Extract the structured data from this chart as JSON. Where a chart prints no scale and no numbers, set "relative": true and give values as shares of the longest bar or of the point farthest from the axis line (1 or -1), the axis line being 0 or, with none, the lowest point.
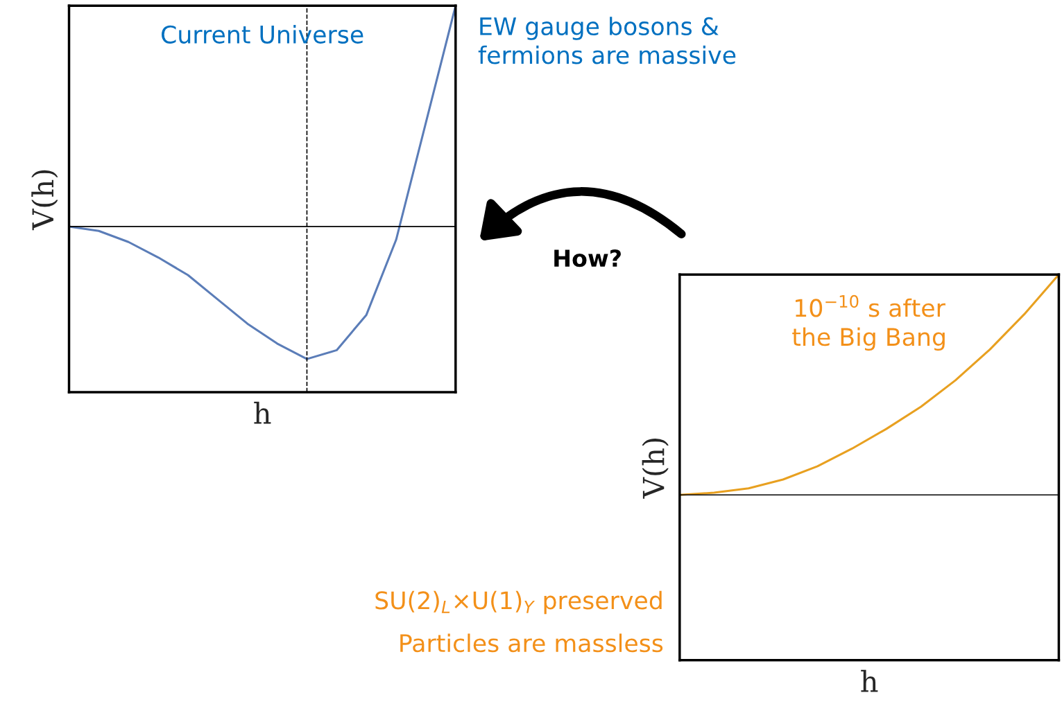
{
  "chart_data": [
    {
      "type": "line",
      "relative": true,
      "xlabel": "h",
      "ylabel": "V(h)",
      "categories": [
        null,
        null,
        null,
        null,
        null,
        null,
        null,
        null,
        null,
        null,
        null,
        null,
        null,
        null
      ],
      "series": [
        {
          "color": "#5b7db8",
          "values": [
            0,
            -0.02,
            -0.07,
            -0.14,
            -0.22,
            -0.33,
            -0.44,
            -0.53,
            -0.6,
            -0.56,
            -0.4,
            -0.06,
            0.47,
            1
          ]
        }
      ],
      "ref_lines": [
        {
          "axis": "y",
          "value": 0,
          "color": "#000000",
          "line_style": "solid"
        }
      ],
      "annotations": [
        "Current Universe",
        "EW gauge bosons &\nfermions are massive",
        "How?"
      ]
    },
    {
      "type": "line",
      "relative": true,
      "xlabel": "h",
      "ylabel": "V(h)",
      "categories": [
        null,
        null,
        null,
        null,
        null,
        null,
        null,
        null,
        null,
        null,
        null,
        null
      ],
      "series": [
        {
          "color": "#e8a020",
          "values": [
            0,
            0.01,
            0.03,
            0.07,
            0.13,
            0.21,
            0.3,
            0.4,
            0.52,
            0.66,
            0.82,
            1
          ]
        }
      ],
      "ref_lines": [
        {
          "axis": "y",
          "value": 0,
          "color": "#000000",
          "line_style": "solid"
        }
      ],
      "annotations": [
        "10$^{−10}$ s after\nthe Big Bang",
        "SU(2)$_{L}$×U(1)$_{Y}$ preserved",
        "Particles are massless"
      ]
    }
  ]
}
